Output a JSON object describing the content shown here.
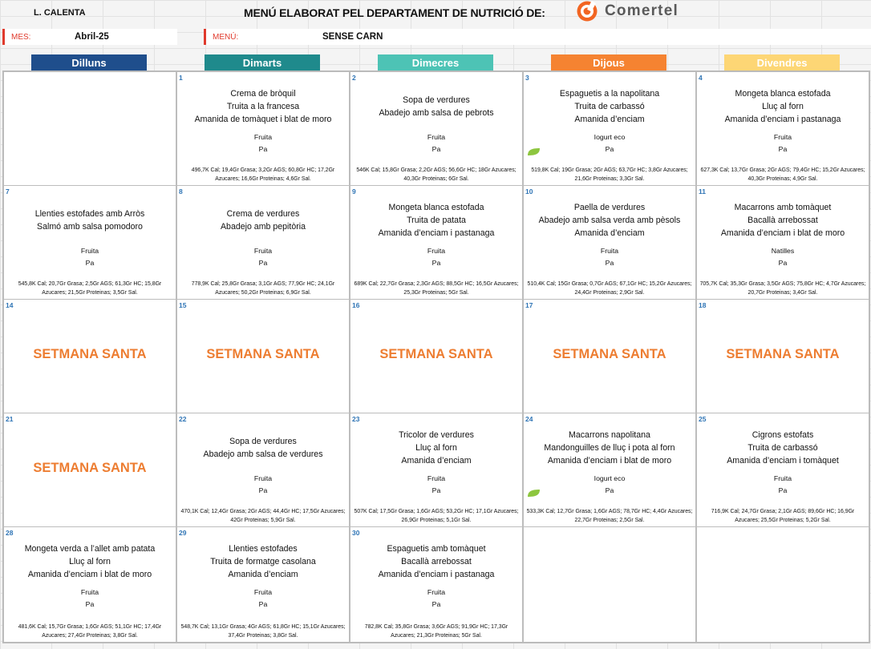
{
  "header": {
    "center_code": "L. CALENTA",
    "title": "MENÚ ELABORAT PEL DEPARTAMENT DE NUTRICIÓ DE:",
    "logo_text": "Comertel",
    "month_label": "MES:",
    "month_value": "Abril-25",
    "menu_label": "MENÚ:",
    "menu_value": "SENSE CARN"
  },
  "colors": {
    "accent_red": "#e03a2c",
    "holiday_orange": "#ed7d31",
    "day_number_blue": "#2e74b5",
    "eco_green": "#8dc63f",
    "logo_orange": "#f26522"
  },
  "days": [
    {
      "label": "Dilluns",
      "color": "#1f4e8c"
    },
    {
      "label": "Dimarts",
      "color": "#1f8a8c"
    },
    {
      "label": "Dimecres",
      "color": "#4dc3b5"
    },
    {
      "label": "Dijous",
      "color": "#f58331"
    },
    {
      "label": "Divendres",
      "color": "#fdd675"
    }
  ],
  "weeks": [
    [
      {
        "empty": true
      },
      {
        "num": "1",
        "meals": [
          "Crema de bròquil",
          "Truita a la francesa",
          "Amanida de tomàquet i blat de moro"
        ],
        "extras": [
          "Fruita",
          "Pa"
        ],
        "nutrition": "496,7K Cal; 19,4Gr Grasa; 3,2Gr AGS; 60,8Gr HC; 17,2Gr Azucares; 16,6Gr Proteinas; 4,6Gr Sal."
      },
      {
        "num": "2",
        "meals": [
          "Sopa de verdures",
          "Abadejo amb salsa de pebrots"
        ],
        "extras": [
          "Fruita",
          "Pa"
        ],
        "nutrition": "546K Cal; 15,8Gr Grasa; 2,2Gr AGS; 56,6Gr HC; 18Gr Azucares; 40,3Gr Proteinas; 6Gr Sal."
      },
      {
        "num": "3",
        "meals": [
          "Espaguetis a la napolitana",
          "Truita de carbassó",
          "Amanida d’enciam"
        ],
        "extras": [
          "Iogurt eco",
          "Pa"
        ],
        "eco": true,
        "nutrition": "519,8K Cal; 19Gr Grasa; 2Gr AGS; 63,7Gr HC; 3,8Gr Azucares; 21,6Gr Proteinas; 3,3Gr Sal."
      },
      {
        "num": "4",
        "meals": [
          "Mongeta blanca estofada",
          "Lluç al forn",
          "Amanida d’enciam i pastanaga"
        ],
        "extras": [
          "Fruita",
          "Pa"
        ],
        "nutrition": "627,3K Cal; 13,7Gr Grasa; 2Gr AGS; 79,4Gr HC; 15,2Gr Azucares; 40,3Gr Proteinas; 4,9Gr Sal."
      }
    ],
    [
      {
        "num": "7",
        "meals": [
          "Llenties estofades amb Arròs",
          "Salmó amb salsa pomodoro"
        ],
        "extras": [
          "Fruita",
          "Pa"
        ],
        "nutrition": "545,8K Cal; 20,7Gr Grasa; 2,5Gr AGS; 61,3Gr HC; 15,8Gr Azucares; 21,5Gr Proteinas; 3,5Gr Sal."
      },
      {
        "num": "8",
        "meals": [
          "Crema de verdures",
          "Abadejo amb pepitòria"
        ],
        "extras": [
          "Fruita",
          "Pa"
        ],
        "nutrition": "778,9K Cal; 25,8Gr Grasa; 3,1Gr AGS; 77,9Gr HC; 24,1Gr Azucares; 50,2Gr Proteinas; 6,9Gr Sal."
      },
      {
        "num": "9",
        "meals": [
          "Mongeta blanca estofada",
          "Truita de patata",
          "Amanida d’enciam i pastanaga"
        ],
        "extras": [
          "Fruita",
          "Pa"
        ],
        "nutrition": "689K Cal; 22,7Gr Grasa; 2,3Gr AGS; 88,5Gr HC; 16,5Gr Azucares; 25,3Gr Proteinas; 5Gr Sal."
      },
      {
        "num": "10",
        "meals": [
          "Paella de verdures",
          "Abadejo amb salsa verda amb pèsols",
          "Amanida d’enciam"
        ],
        "extras": [
          "Fruita",
          "Pa"
        ],
        "nutrition": "510,4K Cal; 15Gr Grasa; 0,7Gr AGS; 67,1Gr HC; 15,2Gr Azucares; 24,4Gr Proteinas; 2,9Gr Sal."
      },
      {
        "num": "11",
        "meals": [
          "Macarrons amb tomàquet",
          "Bacallà arrebossat",
          "Amanida d’enciam i blat de moro"
        ],
        "extras": [
          "Natilles",
          "Pa"
        ],
        "nutrition": "705,7K Cal; 35,3Gr Grasa; 3,5Gr AGS; 75,8Gr HC; 4,7Gr Azucares; 20,7Gr Proteinas; 3,4Gr Sal."
      }
    ],
    [
      {
        "num": "14",
        "holiday": "SETMANA SANTA"
      },
      {
        "num": "15",
        "holiday": "SETMANA SANTA"
      },
      {
        "num": "16",
        "holiday": "SETMANA SANTA"
      },
      {
        "num": "17",
        "holiday": "SETMANA SANTA"
      },
      {
        "num": "18",
        "holiday": "SETMANA SANTA"
      }
    ],
    [
      {
        "num": "21",
        "holiday": "SETMANA SANTA"
      },
      {
        "num": "22",
        "meals": [
          "Sopa de verdures",
          "Abadejo amb salsa de verdures"
        ],
        "extras": [
          "Fruita",
          "Pa"
        ],
        "nutrition": "470,1K Cal; 12,4Gr Grasa; 2Gr AGS; 44,4Gr HC; 17,5Gr Azucares; 42Gr Proteinas; 5,9Gr Sal."
      },
      {
        "num": "23",
        "meals": [
          "Tricolor de verdures",
          "Lluç al forn",
          "Amanida d’enciam"
        ],
        "extras": [
          "Fruita",
          "Pa"
        ],
        "nutrition": "507K Cal; 17,5Gr Grasa; 1,6Gr AGS; 53,2Gr HC; 17,1Gr Azucares; 26,9Gr Proteinas; 5,1Gr Sal."
      },
      {
        "num": "24",
        "meals": [
          "Macarrons napolitana",
          "Mandonguilles de lluç i pota al forn",
          "Amanida d’enciam i blat de moro"
        ],
        "extras": [
          "Iogurt eco",
          "Pa"
        ],
        "eco": true,
        "nutrition": "533,3K Cal; 12,7Gr Grasa; 1,6Gr AGS; 78,7Gr HC; 4,4Gr Azucares; 22,7Gr Proteinas; 2,5Gr Sal."
      },
      {
        "num": "25",
        "meals": [
          "Cigrons estofats",
          "Truita de carbassó",
          "Amanida d’enciam i tomàquet"
        ],
        "extras": [
          "Fruita",
          "Pa"
        ],
        "nutrition": "716,9K Cal; 24,7Gr Grasa; 2,1Gr AGS; 89,6Gr HC; 16,9Gr Azucares; 25,5Gr Proteinas; 5,2Gr Sal."
      }
    ],
    [
      {
        "num": "28",
        "meals": [
          "Mongeta verda a l’allet amb patata",
          "Lluç al forn",
          "Amanida d’enciam i blat de moro"
        ],
        "extras": [
          "Fruita",
          "Pa"
        ],
        "nutrition": "481,6K Cal; 15,7Gr Grasa; 1,6Gr AGS; 51,1Gr HC; 17,4Gr Azucares; 27,4Gr Proteinas; 3,8Gr Sal."
      },
      {
        "num": "29",
        "meals": [
          "Llenties estofades",
          "Truita de formatge casolana",
          "Amanida d’enciam"
        ],
        "extras": [
          "Fruita",
          "Pa"
        ],
        "nutrition": "548,7K Cal; 13,1Gr Grasa; 4Gr AGS; 61,8Gr HC; 15,1Gr Azucares; 37,4Gr Proteinas; 3,8Gr Sal."
      },
      {
        "num": "30",
        "meals": [
          "Espaguetis amb tomàquet",
          "Bacallà arrebossat",
          "Amanida d’enciam i pastanaga"
        ],
        "extras": [
          "Fruita",
          "Pa"
        ],
        "nutrition": "782,8K Cal; 35,8Gr Grasa; 3,6Gr AGS; 91,9Gr HC; 17,3Gr Azucares; 21,3Gr Proteinas; 5Gr Sal."
      },
      {
        "empty": true
      },
      {
        "empty": true
      }
    ]
  ]
}
